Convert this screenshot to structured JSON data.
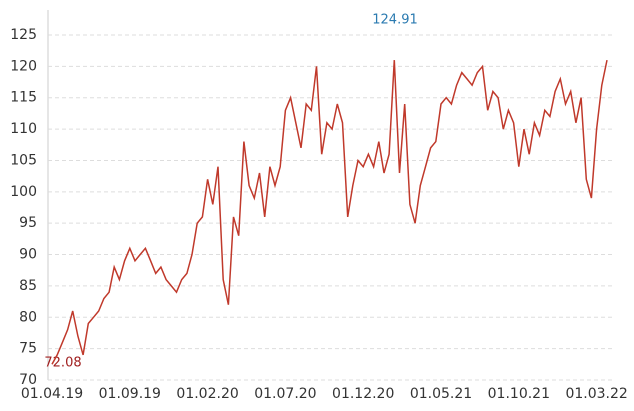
{
  "chart_data": {
    "type": "line",
    "categories": [
      "01.04.19",
      null,
      null,
      null,
      null,
      null,
      null,
      null,
      null,
      null,
      null,
      null,
      null,
      null,
      null,
      "01.09.19",
      null,
      null,
      null,
      null,
      null,
      null,
      null,
      null,
      null,
      null,
      null,
      null,
      null,
      null,
      "01.02.20",
      null,
      null,
      null,
      null,
      null,
      null,
      null,
      null,
      null,
      null,
      null,
      null,
      null,
      null,
      "01.07.20",
      null,
      null,
      null,
      null,
      null,
      null,
      null,
      null,
      null,
      null,
      null,
      null,
      null,
      null,
      "01.12.20",
      null,
      null,
      null,
      null,
      null,
      null,
      null,
      null,
      null,
      null,
      null,
      null,
      null,
      null,
      "01.05.21",
      null,
      null,
      null,
      null,
      null,
      null,
      null,
      null,
      null,
      null,
      null,
      null,
      null,
      null,
      "01.10.21",
      null,
      null,
      null,
      null,
      null,
      null,
      null,
      null,
      null,
      null,
      null,
      null,
      null,
      null,
      "01.03.22",
      null,
      null
    ],
    "series": [
      {
        "color": "#c0392b",
        "values": [
          72.5,
          74,
          76,
          78,
          81,
          77,
          74,
          79,
          80,
          81,
          83,
          84,
          88,
          86,
          89,
          91,
          89,
          90,
          91,
          89,
          87,
          88,
          86,
          85,
          84,
          86,
          87,
          90,
          95,
          96,
          102,
          98,
          104,
          86,
          82,
          96,
          93,
          108,
          101,
          99,
          103,
          96,
          104,
          101,
          104,
          113,
          115,
          111,
          107,
          114,
          113,
          120,
          106,
          111,
          110,
          114,
          111,
          96,
          101,
          105,
          104,
          106,
          104,
          108,
          103,
          106,
          121,
          103,
          114,
          98,
          95,
          101,
          104,
          107,
          108,
          114,
          115,
          114,
          117,
          119,
          118,
          117,
          119,
          120,
          113,
          116,
          115,
          110,
          113,
          111,
          104,
          110,
          106,
          111,
          109,
          113,
          112,
          116,
          118,
          114,
          116,
          111,
          115,
          102,
          99,
          110,
          117,
          121
        ]
      }
    ],
    "ylim": [
      70,
      125
    ],
    "yticks": [
      70,
      75,
      80,
      85,
      90,
      95,
      100,
      105,
      110,
      115,
      120,
      125
    ],
    "grid": true,
    "annotations": {
      "max": "124.91",
      "min": "72.08"
    }
  }
}
